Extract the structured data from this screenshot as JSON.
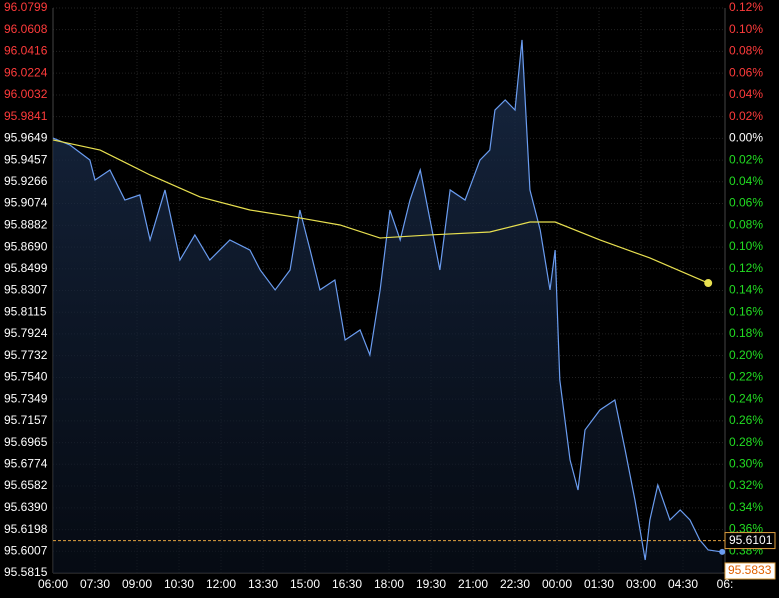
{
  "chart_data": {
    "type": "line",
    "xlim": [
      0,
      1440
    ],
    "xticks": [
      {
        "value": 0,
        "label": "06:00"
      },
      {
        "value": 90,
        "label": "07:30"
      },
      {
        "value": 180,
        "label": "09:00"
      },
      {
        "value": 270,
        "label": "10:30"
      },
      {
        "value": 360,
        "label": "12:00"
      },
      {
        "value": 450,
        "label": "13:30"
      },
      {
        "value": 540,
        "label": "15:00"
      },
      {
        "value": 630,
        "label": "16:30"
      },
      {
        "value": 720,
        "label": "18:00"
      },
      {
        "value": 810,
        "label": "19:30"
      },
      {
        "value": 900,
        "label": "21:00"
      },
      {
        "value": 990,
        "label": "22:30"
      },
      {
        "value": 1080,
        "label": "00:00"
      },
      {
        "value": 1170,
        "label": "01:30"
      },
      {
        "value": 1260,
        "label": "03:00"
      },
      {
        "value": 1350,
        "label": "04:30"
      },
      {
        "value": 1440,
        "label": "06:"
      }
    ],
    "ylim": [
      95.5815,
      96.0799
    ],
    "yticks": [
      96.0799,
      96.0608,
      96.0416,
      96.0224,
      96.0032,
      95.9841,
      95.9649,
      95.9457,
      95.9266,
      95.9074,
      95.8882,
      {
        "value": 95.869,
        "label": "95.8690"
      },
      95.8499,
      95.8307,
      95.8115,
      95.7924,
      95.7732,
      {
        "value": 95.754,
        "label": "95.7540"
      },
      95.7349,
      95.7157,
      95.6965,
      95.6774,
      95.6582,
      {
        "value": 95.639,
        "label": "95.6390"
      },
      95.6198,
      95.6007,
      95.5815
    ],
    "y2lim": [
      -0.4,
      0.12
    ],
    "y2ticks": [
      {
        "value": 0.12,
        "label": "0.12%"
      },
      {
        "value": 0.1,
        "label": "0.10%"
      },
      {
        "value": 0.08,
        "label": "0.08%"
      },
      {
        "value": 0.06,
        "label": "0.06%"
      },
      {
        "value": 0.04,
        "label": "0.04%"
      },
      {
        "value": 0.02,
        "label": "0.02%"
      },
      {
        "value": 0,
        "label": "0.00%"
      },
      {
        "value": -0.02,
        "label": "0.02%"
      },
      {
        "value": -0.04,
        "label": "0.04%"
      },
      {
        "value": -0.06,
        "label": "0.06%"
      },
      {
        "value": -0.08,
        "label": "0.08%"
      },
      {
        "value": -0.1,
        "label": "0.10%"
      },
      {
        "value": -0.12,
        "label": "0.12%"
      },
      {
        "value": -0.14,
        "label": "0.14%"
      },
      {
        "value": -0.16,
        "label": "0.16%"
      },
      {
        "value": -0.18,
        "label": "0.18%"
      },
      {
        "value": -0.2,
        "label": "0.20%"
      },
      {
        "value": -0.22,
        "label": "0.22%"
      },
      {
        "value": -0.24,
        "label": "0.24%"
      },
      {
        "value": -0.26,
        "label": "0.26%"
      },
      {
        "value": -0.28,
        "label": "0.28%"
      },
      {
        "value": -0.3,
        "label": "0.30%"
      },
      {
        "value": -0.32,
        "label": "0.32%"
      },
      {
        "value": -0.34,
        "label": "0.34%"
      },
      {
        "value": -0.36,
        "label": "0.36%"
      },
      {
        "value": -0.38,
        "label": "0.38%"
      },
      {
        "value": -0.4,
        "label": "0.40%"
      }
    ],
    "tick_colors": {
      "up": "#ff3b3b",
      "zero": "#ffffff",
      "down": "#22dd22"
    },
    "grid": true,
    "series": [
      {
        "color": "#6a9cf0",
        "x": [
          0,
          36,
          79,
          90,
          122,
          154,
          186,
          208,
          240,
          272,
          304,
          336,
          379,
          422,
          444,
          476,
          508,
          529,
          551,
          572,
          604,
          626,
          658,
          679,
          701,
          722,
          744,
          765,
          787,
          808,
          829,
          851,
          883,
          915,
          936,
          947,
          969,
          990,
          1005,
          1022,
          1044,
          1065,
          1076,
          1086,
          1108,
          1125,
          1140,
          1172,
          1204,
          1226,
          1247,
          1269,
          1279,
          1296,
          1322,
          1344,
          1365,
          1386,
          1404,
          1434
        ],
        "values": [
          95.9652,
          95.9591,
          95.9458,
          95.9282,
          95.937,
          95.9105,
          95.915,
          95.8753,
          95.9194,
          95.8576,
          95.8797,
          95.8576,
          95.8753,
          95.8664,
          95.8488,
          95.8312,
          95.8488,
          95.9017,
          95.8664,
          95.8312,
          95.84,
          95.787,
          95.7959,
          95.7738,
          95.8312,
          95.9017,
          95.8753,
          95.9105,
          95.937,
          95.8929,
          95.8488,
          95.9194,
          95.9105,
          95.9458,
          95.9546,
          95.9899,
          95.9988,
          95.9899,
          96.0517,
          95.9194,
          95.8841,
          95.8312,
          95.8664,
          95.7518,
          95.6812,
          95.6547,
          95.7077,
          95.7253,
          95.7341,
          95.69,
          95.6459,
          95.593,
          95.6283,
          95.6591,
          95.6283,
          95.6371,
          95.6283,
          95.6106,
          95.6018,
          95.6001
        ]
      },
      {
        "color": "#e8e050",
        "x": [
          0,
          101,
          208,
          315,
          422,
          529,
          615,
          701,
          808,
          936,
          1022,
          1076,
          1172,
          1279,
          1404
        ],
        "values": [
          95.9635,
          95.9546,
          95.9326,
          95.9132,
          95.9017,
          95.8947,
          95.8885,
          95.877,
          95.8797,
          95.8823,
          95.8911,
          95.8911,
          95.8753,
          95.8594,
          95.8373
        ]
      }
    ],
    "last_price": 95.6101,
    "last_price_label": "95.6101",
    "cursor_price": 95.5833,
    "cursor_price_label": "95.5833"
  }
}
